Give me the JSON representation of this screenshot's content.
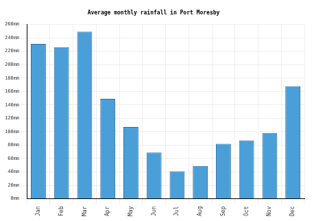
{
  "chart_data": {
    "type": "bar",
    "title": "Average monthly rainfall in Port Moresby",
    "categories": [
      "Jan",
      "Feb",
      "Mar",
      "Apr",
      "May",
      "Jun",
      "Jul",
      "Aug",
      "Sep",
      "Oct",
      "Nov",
      "Dec"
    ],
    "values": [
      231,
      226,
      249,
      149,
      107,
      69,
      41,
      49,
      82,
      87,
      98,
      168
    ],
    "color": "#4b9fd9",
    "ylim": [
      0,
      260
    ],
    "yticks": [
      {
        "value": 0,
        "label": "0mm"
      },
      {
        "value": 20,
        "label": "20mm"
      },
      {
        "value": 40,
        "label": "40mm"
      },
      {
        "value": 60,
        "label": "60mm"
      },
      {
        "value": 80,
        "label": "80mm"
      },
      {
        "value": 100,
        "label": "100mm"
      },
      {
        "value": 120,
        "label": "120mm"
      },
      {
        "value": 140,
        "label": "140mm"
      },
      {
        "value": 160,
        "label": "160mm"
      },
      {
        "value": 180,
        "label": "180mm"
      },
      {
        "value": 200,
        "label": "200mm"
      },
      {
        "value": 220,
        "label": "220mm"
      },
      {
        "value": 240,
        "label": "240mm"
      },
      {
        "value": 260,
        "label": "260mm"
      }
    ],
    "grid": true
  }
}
